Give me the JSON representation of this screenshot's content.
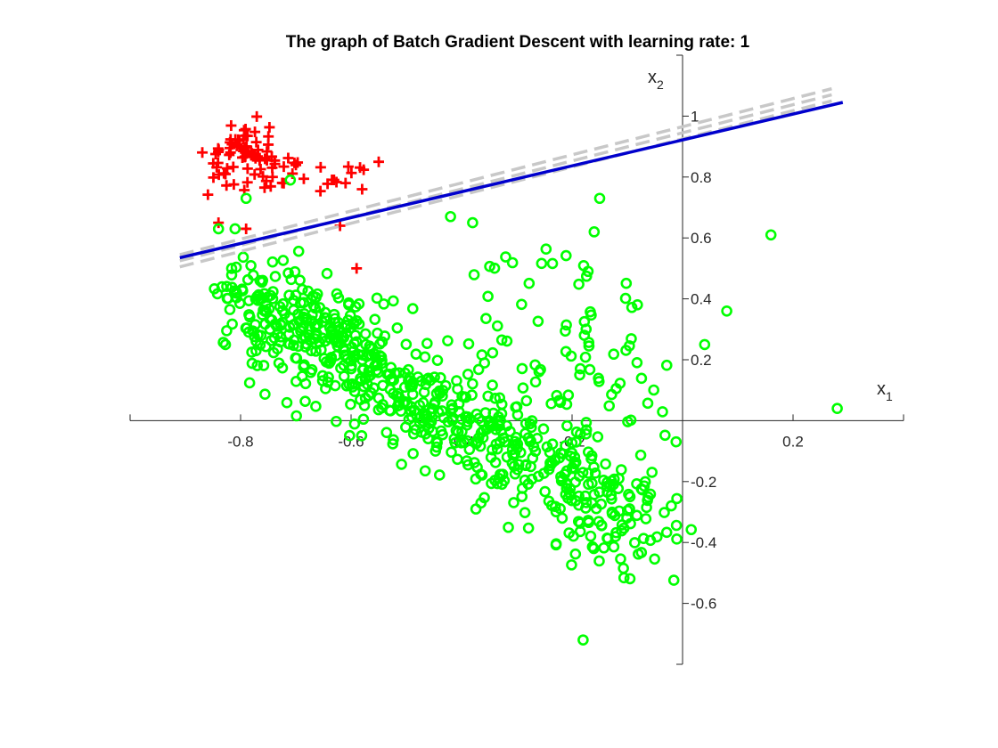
{
  "chart_data": {
    "type": "scatter",
    "title": "The graph of Batch Gradient Descent with learning rate: 1",
    "xlabel": "x",
    "xlabel_sub": "1",
    "ylabel": "x",
    "ylabel_sub": "2",
    "xlim": [
      -1.0,
      0.4
    ],
    "ylim": [
      -0.8,
      1.2
    ],
    "axis_location": "origin",
    "grid": false,
    "xticks": [
      {
        "value": -0.8,
        "label": "-0.8"
      },
      {
        "value": -0.6,
        "label": "-0.6"
      },
      {
        "value": -0.4,
        "label": "-0.4"
      },
      {
        "value": -0.2,
        "label": "-0.2"
      },
      {
        "value": 0.2,
        "label": "0.2"
      }
    ],
    "yticks": [
      {
        "value": -0.6,
        "label": "-0.6"
      },
      {
        "value": -0.4,
        "label": "-0.4"
      },
      {
        "value": -0.2,
        "label": "-0.2"
      },
      {
        "value": 0.2,
        "label": "0.2"
      },
      {
        "value": 0.4,
        "label": "0.4"
      },
      {
        "value": 0.6,
        "label": "0.6"
      },
      {
        "value": 0.8,
        "label": "0.8"
      },
      {
        "value": 1,
        "label": "1"
      }
    ],
    "classes": [
      {
        "marker": "plus",
        "color": "#ff0000"
      },
      {
        "marker": "circle",
        "color": "#00ff00"
      }
    ],
    "outlier_points": [
      {
        "x": 0.16,
        "y": 0.61
      },
      {
        "x": 0.08,
        "y": 0.36
      },
      {
        "x": 0.04,
        "y": 0.25
      },
      {
        "x": 0.28,
        "y": 0.04
      },
      {
        "x": -0.84,
        "y": 0.63
      },
      {
        "x": -0.71,
        "y": 0.79
      },
      {
        "x": -0.79,
        "y": 0.73
      },
      {
        "x": -0.81,
        "y": 0.63
      },
      {
        "x": -0.18,
        "y": -0.72
      },
      {
        "x": -0.15,
        "y": 0.73
      },
      {
        "x": -0.16,
        "y": 0.62
      },
      {
        "x": -0.42,
        "y": 0.67
      },
      {
        "x": -0.38,
        "y": 0.65
      }
    ],
    "decision_lines": [
      {
        "role": "final",
        "color": "#0000cc",
        "style": "solid",
        "width": 3.5,
        "x": [
          -0.91,
          0.29
        ],
        "y": [
          0.535,
          1.045
        ]
      },
      {
        "role": "iteration",
        "color": "#c8c8c8",
        "style": "dashed",
        "width": 3.5,
        "x": [
          -0.91,
          0.27
        ],
        "y": [
          0.525,
          1.07
        ]
      },
      {
        "role": "iteration",
        "color": "#c8c8c8",
        "style": "dashed",
        "width": 3.5,
        "x": [
          -0.91,
          0.27
        ],
        "y": [
          0.545,
          1.09
        ]
      },
      {
        "role": "iteration",
        "color": "#c8c8c8",
        "style": "dashed",
        "width": 3.5,
        "x": [
          -0.91,
          0.27
        ],
        "y": [
          0.505,
          1.05
        ]
      }
    ]
  }
}
